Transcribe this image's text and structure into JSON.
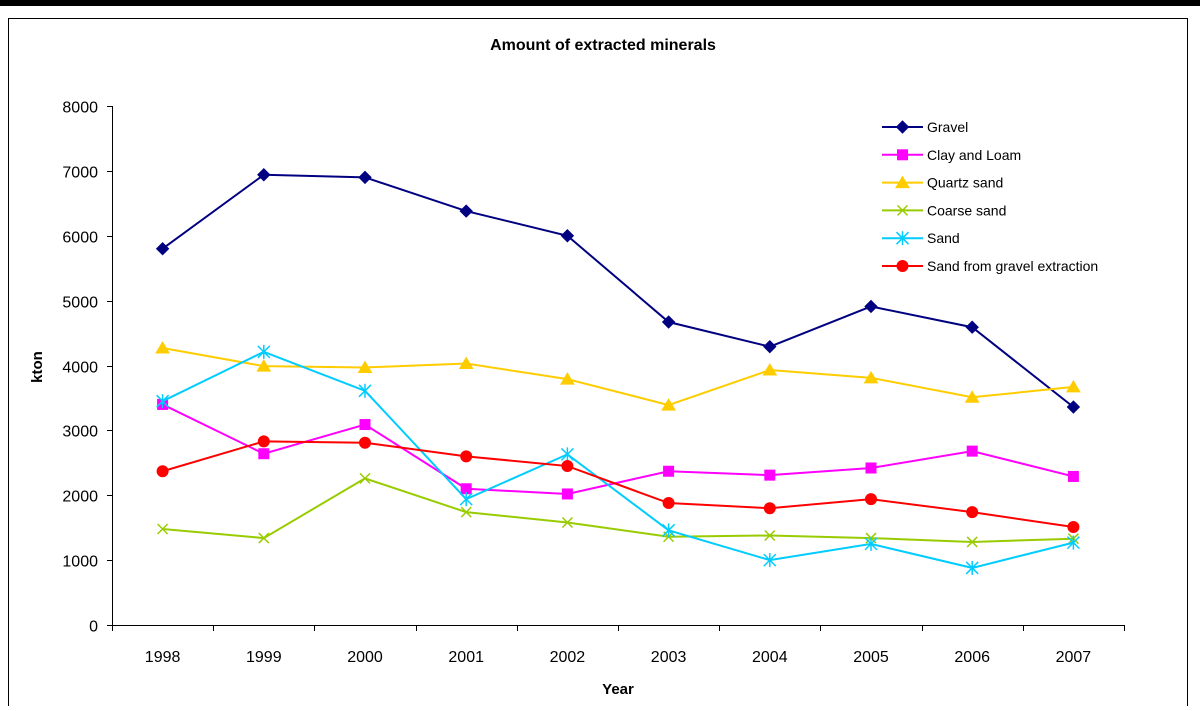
{
  "chart_data": {
    "type": "line",
    "title": "Amount of extracted minerals",
    "xlabel": "Year",
    "ylabel": "kton",
    "categories": [
      "1998",
      "1999",
      "2000",
      "2001",
      "2002",
      "2003",
      "2004",
      "2005",
      "2006",
      "2007"
    ],
    "ylim": [
      0,
      8000
    ],
    "yticks": [
      0,
      1000,
      2000,
      3000,
      4000,
      5000,
      6000,
      7000,
      8000
    ],
    "grid": false,
    "legend_position": "top-right",
    "series": [
      {
        "name": "Gravel",
        "color": "#000080",
        "marker": "diamond",
        "values": [
          5800,
          6940,
          6900,
          6380,
          6000,
          4670,
          4290,
          4910,
          4590,
          3360
        ]
      },
      {
        "name": "Clay and Loam",
        "color": "#ff00ff",
        "marker": "square",
        "values": [
          3400,
          2640,
          3090,
          2100,
          2020,
          2370,
          2310,
          2420,
          2680,
          2290
        ]
      },
      {
        "name": "Quartz sand",
        "color": "#ffcc00",
        "marker": "triangle",
        "values": [
          4270,
          3990,
          3970,
          4030,
          3790,
          3390,
          3930,
          3810,
          3510,
          3670
        ]
      },
      {
        "name": "Coarse sand",
        "color": "#99cc00",
        "marker": "x",
        "values": [
          1480,
          1340,
          2260,
          1740,
          1580,
          1360,
          1380,
          1340,
          1280,
          1330
        ]
      },
      {
        "name": "Sand",
        "color": "#00ccff",
        "marker": "asterisk",
        "values": [
          3450,
          4210,
          3610,
          1940,
          2630,
          1460,
          1000,
          1250,
          880,
          1270
        ]
      },
      {
        "name": "Sand from gravel extraction",
        "color": "#ff0000",
        "marker": "circle",
        "values": [
          2370,
          2830,
          2810,
          2600,
          2450,
          1880,
          1800,
          1940,
          1740,
          1510
        ]
      }
    ]
  }
}
